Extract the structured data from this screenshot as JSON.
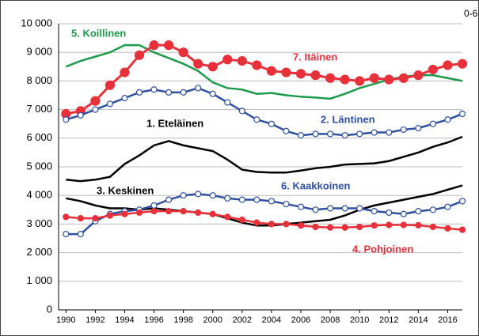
{
  "chart_data": {
    "type": "line",
    "subtitle": "0-6",
    "x": [
      1990,
      1991,
      1992,
      1993,
      1994,
      1995,
      1996,
      1997,
      1998,
      1999,
      2000,
      2001,
      2002,
      2003,
      2004,
      2005,
      2006,
      2007,
      2008,
      2009,
      2010,
      2011,
      2012,
      2013,
      2014,
      2015,
      2016,
      2017
    ],
    "xlim": [
      1989.5,
      2017
    ],
    "xticks": [
      1990,
      1992,
      1994,
      1996,
      1998,
      2000,
      2002,
      2004,
      2006,
      2008,
      2010,
      2012,
      2014,
      2016
    ],
    "ylim": [
      0,
      10000
    ],
    "yticks": [
      0,
      {
        "value": 1000,
        "label": "1 000"
      },
      {
        "value": 2000,
        "label": "2 000"
      },
      {
        "value": 3000,
        "label": "3 000"
      },
      {
        "value": 4000,
        "label": "4 000"
      },
      {
        "value": 5000,
        "label": "5 000"
      },
      {
        "value": 6000,
        "label": "6 000"
      },
      {
        "value": 7000,
        "label": "7 000"
      },
      {
        "value": 8000,
        "label": "8 000"
      },
      {
        "value": 9000,
        "label": "9 000"
      },
      {
        "value": 10000,
        "label": "10 000"
      }
    ],
    "grid": true,
    "series": [
      {
        "name": "5. Koillinen",
        "color": "#1f9a4c",
        "marker": "none",
        "values": [
          8500,
          8700,
          8850,
          9000,
          9250,
          9250,
          9000,
          8800,
          8600,
          8350,
          7950,
          7750,
          7700,
          7550,
          7580,
          7500,
          7450,
          7420,
          7380,
          7550,
          7750,
          7900,
          8050,
          8150,
          8200,
          8200,
          8100,
          8000
        ]
      },
      {
        "name": "7. Itäinen",
        "color": "#e8303a",
        "marker": "filled-large",
        "values": [
          6850,
          6950,
          7300,
          7850,
          8300,
          8900,
          9250,
          9250,
          9000,
          8600,
          8500,
          8750,
          8700,
          8550,
          8350,
          8300,
          8250,
          8200,
          8100,
          8050,
          8000,
          8100,
          8050,
          8100,
          8200,
          8400,
          8550,
          8600
        ]
      },
      {
        "name": "2. Läntinen",
        "color": "#2f4f9f",
        "marker": "open",
        "values": [
          6650,
          6800,
          7000,
          7200,
          7400,
          7600,
          7700,
          7600,
          7600,
          7750,
          7550,
          7250,
          6950,
          6650,
          6500,
          6250,
          6100,
          6150,
          6150,
          6100,
          6150,
          6200,
          6200,
          6300,
          6350,
          6500,
          6650,
          6850
        ]
      },
      {
        "name": "1. Eteläinen",
        "color": "#000000",
        "marker": "none",
        "values": [
          4550,
          4500,
          4550,
          4650,
          5100,
          5400,
          5750,
          5900,
          5750,
          5650,
          5550,
          5250,
          4900,
          4820,
          4800,
          4800,
          4870,
          4950,
          5000,
          5080,
          5100,
          5120,
          5200,
          5350,
          5500,
          5700,
          5850,
          6050
        ]
      },
      {
        "name": "3. Keskinen",
        "color": "#000000",
        "marker": "none",
        "values": [
          3900,
          3800,
          3650,
          3550,
          3550,
          3500,
          3550,
          3500,
          3450,
          3400,
          3350,
          3200,
          3050,
          2950,
          2950,
          3000,
          3050,
          3100,
          3150,
          3300,
          3500,
          3650,
          3750,
          3850,
          3950,
          4050,
          4200,
          4350
        ]
      },
      {
        "name": "6. Kaakkoinen",
        "color": "#2f4f9f",
        "marker": "open",
        "values": [
          2650,
          2650,
          3100,
          3350,
          3450,
          3500,
          3650,
          3850,
          4000,
          4050,
          4000,
          3900,
          3850,
          3850,
          3800,
          3700,
          3600,
          3500,
          3550,
          3550,
          3550,
          3450,
          3400,
          3350,
          3450,
          3500,
          3600,
          3800
        ]
      },
      {
        "name": "4. Pohjoinen",
        "color": "#e8303a",
        "marker": "filled",
        "values": [
          3250,
          3200,
          3200,
          3300,
          3350,
          3400,
          3450,
          3450,
          3450,
          3400,
          3350,
          3250,
          3150,
          3050,
          3000,
          3000,
          2950,
          2900,
          2880,
          2880,
          2900,
          2950,
          2970,
          2970,
          2960,
          2900,
          2850,
          2800
        ]
      }
    ]
  }
}
